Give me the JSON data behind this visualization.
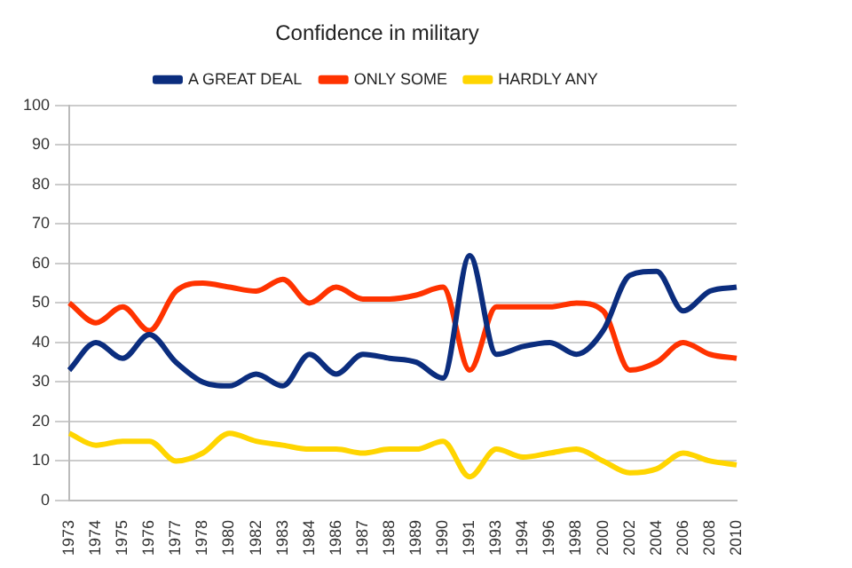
{
  "chart_data": {
    "type": "line",
    "title": "Confidence in military",
    "categories": [
      "1973",
      "1974",
      "1975",
      "1976",
      "1977",
      "1978",
      "1980",
      "1982",
      "1983",
      "1984",
      "1986",
      "1987",
      "1988",
      "1989",
      "1990",
      "1991",
      "1993",
      "1994",
      "1996",
      "1998",
      "2000",
      "2002",
      "2004",
      "2006",
      "2008",
      "2010"
    ],
    "series": [
      {
        "name": "A GREAT DEAL",
        "color": "#0b2d7e",
        "values": [
          33,
          40,
          36,
          42,
          35,
          30,
          29,
          32,
          29,
          37,
          32,
          37,
          36,
          35,
          31,
          62,
          37,
          39,
          40,
          37,
          43,
          57,
          58,
          48,
          53,
          54
        ]
      },
      {
        "name": "ONLY SOME",
        "color": "#ff3300",
        "values": [
          50,
          45,
          49,
          43,
          53,
          55,
          54,
          53,
          56,
          50,
          54,
          51,
          51,
          52,
          54,
          33,
          49,
          49,
          49,
          50,
          48,
          33,
          35,
          40,
          37,
          36
        ]
      },
      {
        "name": "HARDLY ANY",
        "color": "#ffd500",
        "values": [
          17,
          14,
          15,
          15,
          10,
          12,
          17,
          15,
          14,
          13,
          13,
          12,
          13,
          13,
          15,
          6,
          13,
          11,
          12,
          13,
          10,
          7,
          8,
          12,
          10,
          9
        ]
      }
    ],
    "ylim": [
      0,
      100
    ],
    "yticks": [
      0,
      10,
      20,
      30,
      40,
      50,
      60,
      70,
      80,
      90,
      100
    ],
    "grid": "y",
    "legend": "top",
    "marker": "none",
    "line_style": "solid"
  }
}
